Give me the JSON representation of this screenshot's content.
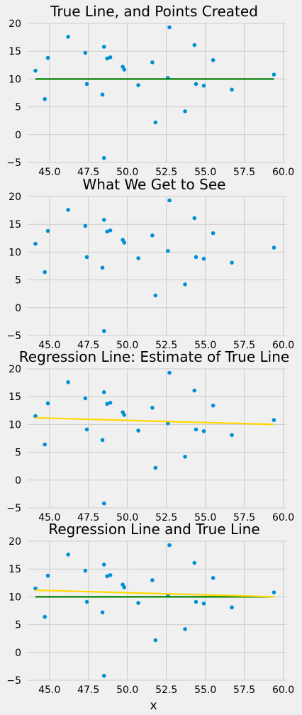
{
  "chart_data": [
    {
      "type": "scatter",
      "title": "True Line, and Points Created",
      "xlabel": "",
      "xlim": [
        43.6,
        60.2
      ],
      "ylim": [
        -5,
        20
      ],
      "xticks": [
        "45.0",
        "47.5",
        "50.0",
        "52.5",
        "55.0",
        "57.5",
        "60.0"
      ],
      "yticks": [
        "20",
        "15",
        "10",
        "5",
        "0",
        "−5"
      ],
      "grid": true,
      "points": [
        [
          44.1,
          11.5
        ],
        [
          44.7,
          6.4
        ],
        [
          44.9,
          13.8
        ],
        [
          46.2,
          17.6
        ],
        [
          47.3,
          14.7
        ],
        [
          47.4,
          9.1
        ],
        [
          48.4,
          7.2
        ],
        [
          48.5,
          15.8
        ],
        [
          48.5,
          -4.2
        ],
        [
          48.7,
          13.7
        ],
        [
          48.9,
          13.9
        ],
        [
          49.7,
          12.2
        ],
        [
          49.8,
          11.7
        ],
        [
          50.7,
          8.9
        ],
        [
          51.6,
          13.0
        ],
        [
          51.8,
          2.2
        ],
        [
          52.6,
          10.2
        ],
        [
          52.7,
          19.3
        ],
        [
          53.7,
          4.2
        ],
        [
          54.3,
          16.1
        ],
        [
          54.4,
          9.1
        ],
        [
          54.9,
          8.8
        ],
        [
          55.5,
          13.4
        ],
        [
          56.7,
          8.1
        ],
        [
          59.4,
          10.8
        ]
      ],
      "lines": [
        {
          "role": "true",
          "color": "#008000",
          "x": [
            44.1,
            59.4
          ],
          "y": [
            10,
            10
          ]
        }
      ]
    },
    {
      "type": "scatter",
      "title": "What We Get to See",
      "xlabel": "",
      "xlim": [
        43.6,
        60.2
      ],
      "ylim": [
        -5,
        20
      ],
      "xticks": [
        "45.0",
        "47.5",
        "50.0",
        "52.5",
        "55.0",
        "57.5",
        "60.0"
      ],
      "yticks": [
        "20",
        "15",
        "10",
        "5",
        "0",
        "−5"
      ],
      "grid": true,
      "points": [
        [
          44.1,
          11.5
        ],
        [
          44.7,
          6.4
        ],
        [
          44.9,
          13.8
        ],
        [
          46.2,
          17.6
        ],
        [
          47.3,
          14.7
        ],
        [
          47.4,
          9.1
        ],
        [
          48.4,
          7.2
        ],
        [
          48.5,
          15.8
        ],
        [
          48.5,
          -4.2
        ],
        [
          48.7,
          13.7
        ],
        [
          48.9,
          13.9
        ],
        [
          49.7,
          12.2
        ],
        [
          49.8,
          11.7
        ],
        [
          50.7,
          8.9
        ],
        [
          51.6,
          13.0
        ],
        [
          51.8,
          2.2
        ],
        [
          52.6,
          10.2
        ],
        [
          52.7,
          19.3
        ],
        [
          53.7,
          4.2
        ],
        [
          54.3,
          16.1
        ],
        [
          54.4,
          9.1
        ],
        [
          54.9,
          8.8
        ],
        [
          55.5,
          13.4
        ],
        [
          56.7,
          8.1
        ],
        [
          59.4,
          10.8
        ]
      ],
      "lines": []
    },
    {
      "type": "scatter",
      "title": "Regression Line: Estimate of True Line",
      "xlabel": "",
      "xlim": [
        43.6,
        60.2
      ],
      "ylim": [
        -5,
        20
      ],
      "xticks": [
        "45.0",
        "47.5",
        "50.0",
        "52.5",
        "55.0",
        "57.5",
        "60.0"
      ],
      "yticks": [
        "20",
        "15",
        "10",
        "5",
        "0",
        "−5"
      ],
      "grid": true,
      "points": [
        [
          44.1,
          11.5
        ],
        [
          44.7,
          6.4
        ],
        [
          44.9,
          13.8
        ],
        [
          46.2,
          17.6
        ],
        [
          47.3,
          14.7
        ],
        [
          47.4,
          9.1
        ],
        [
          48.4,
          7.2
        ],
        [
          48.5,
          15.8
        ],
        [
          48.5,
          -4.2
        ],
        [
          48.7,
          13.7
        ],
        [
          48.9,
          13.9
        ],
        [
          49.7,
          12.2
        ],
        [
          49.8,
          11.7
        ],
        [
          50.7,
          8.9
        ],
        [
          51.6,
          13.0
        ],
        [
          51.8,
          2.2
        ],
        [
          52.6,
          10.2
        ],
        [
          52.7,
          19.3
        ],
        [
          53.7,
          4.2
        ],
        [
          54.3,
          16.1
        ],
        [
          54.4,
          9.1
        ],
        [
          54.9,
          8.8
        ],
        [
          55.5,
          13.4
        ],
        [
          56.7,
          8.1
        ],
        [
          59.4,
          10.8
        ]
      ],
      "lines": [
        {
          "role": "regression",
          "color": "#ffd700",
          "x": [
            44.1,
            59.4
          ],
          "y": [
            11.2,
            10.0
          ]
        }
      ]
    },
    {
      "type": "scatter",
      "title": "Regression Line and True Line",
      "xlabel": "x",
      "xlim": [
        43.6,
        60.2
      ],
      "ylim": [
        -5,
        20
      ],
      "xticks": [
        "45.0",
        "47.5",
        "50.0",
        "52.5",
        "55.0",
        "57.5",
        "60.0"
      ],
      "yticks": [
        "20",
        "15",
        "10",
        "5",
        "0",
        "−5"
      ],
      "grid": true,
      "points": [
        [
          44.1,
          11.5
        ],
        [
          44.7,
          6.4
        ],
        [
          44.9,
          13.8
        ],
        [
          46.2,
          17.6
        ],
        [
          47.3,
          14.7
        ],
        [
          47.4,
          9.1
        ],
        [
          48.4,
          7.2
        ],
        [
          48.5,
          15.8
        ],
        [
          48.5,
          -4.2
        ],
        [
          48.7,
          13.7
        ],
        [
          48.9,
          13.9
        ],
        [
          49.7,
          12.2
        ],
        [
          49.8,
          11.7
        ],
        [
          50.7,
          8.9
        ],
        [
          51.6,
          13.0
        ],
        [
          51.8,
          2.2
        ],
        [
          52.6,
          10.2
        ],
        [
          52.7,
          19.3
        ],
        [
          53.7,
          4.2
        ],
        [
          54.3,
          16.1
        ],
        [
          54.4,
          9.1
        ],
        [
          54.9,
          8.8
        ],
        [
          55.5,
          13.4
        ],
        [
          56.7,
          8.1
        ],
        [
          59.4,
          10.8
        ]
      ],
      "lines": [
        {
          "role": "true",
          "color": "#008000",
          "x": [
            44.1,
            59.4
          ],
          "y": [
            10,
            10
          ]
        },
        {
          "role": "regression",
          "color": "#ffd700",
          "x": [
            44.1,
            59.4
          ],
          "y": [
            11.2,
            10.0
          ]
        }
      ]
    }
  ],
  "colors": {
    "points": "#008fd5",
    "background": "#f0f0f0",
    "grid": "#cbcbcb"
  }
}
